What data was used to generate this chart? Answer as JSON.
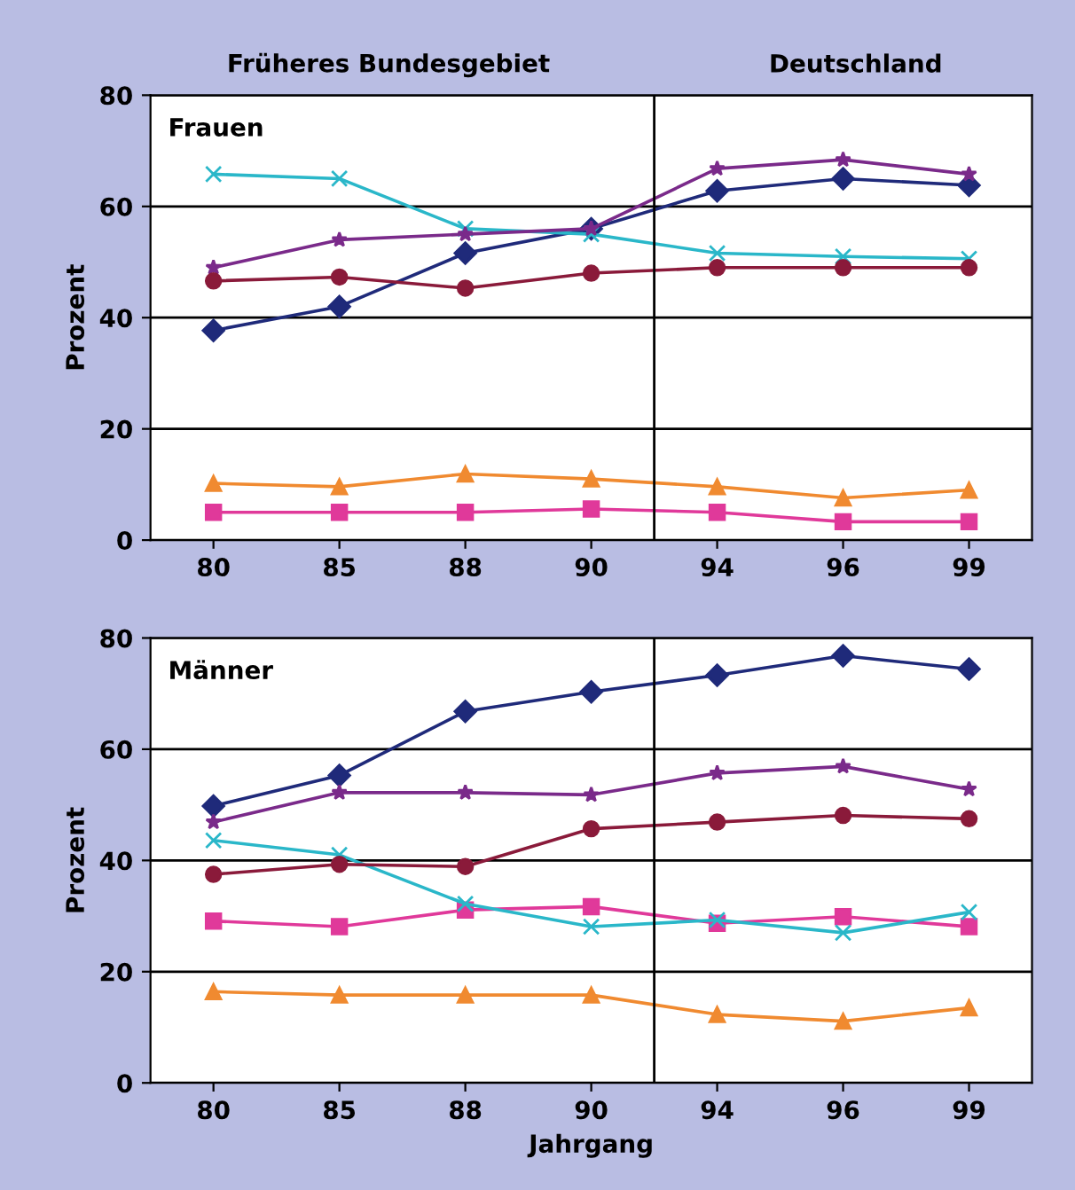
{
  "chart_data": [
    {
      "type": "line",
      "title": "Frauen",
      "ylabel": "Prozent",
      "categories": [
        "80",
        "85",
        "88",
        "90",
        "94",
        "96",
        "99"
      ],
      "annotations": [
        "Früheres Bundesgebiet",
        "Deutschland"
      ],
      "ylim": [
        0,
        80
      ],
      "yticks": [
        0,
        20,
        40,
        60,
        80
      ],
      "grid": "y",
      "series": [
        {
          "color": "#1f2a7a",
          "marker": "diamond",
          "values": [
            37.7,
            42,
            51.6,
            56,
            62.8,
            65,
            63.8
          ]
        },
        {
          "color": "#e0399a",
          "marker": "square",
          "values": [
            5,
            5,
            5,
            5.6,
            5,
            3.3,
            3.3
          ]
        },
        {
          "color": "#f08a30",
          "marker": "triangle",
          "values": [
            10.2,
            9.6,
            11.9,
            11,
            9.6,
            7.6,
            9
          ]
        },
        {
          "color": "#2ab7c9",
          "marker": "cross",
          "values": [
            65.8,
            65,
            56,
            55,
            51.6,
            51,
            50.6
          ]
        },
        {
          "color": "#7a2a8a",
          "marker": "star",
          "values": [
            49,
            54,
            55,
            56,
            66.8,
            68.4,
            65.8
          ]
        },
        {
          "color": "#8a1a3a",
          "marker": "circle",
          "values": [
            46.6,
            47.3,
            45.3,
            48,
            49,
            49,
            49
          ]
        }
      ]
    },
    {
      "type": "line",
      "title": "Männer",
      "ylabel": "Prozent",
      "xlabel": "Jahrgang",
      "categories": [
        "80",
        "85",
        "88",
        "90",
        "94",
        "96",
        "99"
      ],
      "ylim": [
        0,
        80
      ],
      "yticks": [
        0,
        20,
        40,
        60,
        80
      ],
      "grid": "y",
      "series": [
        {
          "color": "#1f2a7a",
          "marker": "diamond",
          "values": [
            49.8,
            55.3,
            66.8,
            70.3,
            73.3,
            76.8,
            74.4
          ]
        },
        {
          "color": "#e0399a",
          "marker": "square",
          "values": [
            29.1,
            28.1,
            31.1,
            31.7,
            28.7,
            29.9,
            28.1
          ]
        },
        {
          "color": "#f08a30",
          "marker": "triangle",
          "values": [
            16.4,
            15.8,
            15.8,
            15.8,
            12.3,
            11.1,
            13.5
          ]
        },
        {
          "color": "#2ab7c9",
          "marker": "cross",
          "values": [
            43.6,
            41,
            32.2,
            28.1,
            29.3,
            27,
            30.7
          ]
        },
        {
          "color": "#7a2a8a",
          "marker": "star",
          "values": [
            46.9,
            52.2,
            52.2,
            51.8,
            55.7,
            56.9,
            52.8
          ]
        },
        {
          "color": "#8a1a3a",
          "marker": "circle",
          "values": [
            37.5,
            39.3,
            38.9,
            45.7,
            46.9,
            48.1,
            47.5
          ]
        }
      ]
    }
  ]
}
